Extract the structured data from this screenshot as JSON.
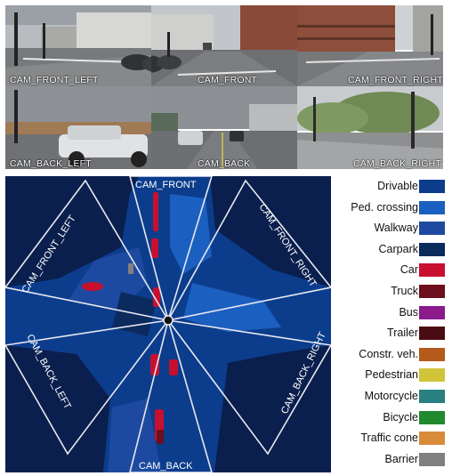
{
  "cameras": [
    {
      "label": "CAM_FRONT_LEFT"
    },
    {
      "label": "CAM_FRONT"
    },
    {
      "label": "CAM_FRONT_RIGHT"
    },
    {
      "label": "CAM_BACK_LEFT"
    },
    {
      "label": "CAM_BACK"
    },
    {
      "label": "CAM_BACK_RIGHT"
    }
  ],
  "bev": {
    "labels": {
      "front": "CAM_FRONT",
      "front_left": "CAM_FRONT_LEFT",
      "front_right": "CAM_FRONT_RIGHT",
      "back_left": "CAM_BACK_LEFT",
      "back_right": "CAM_BACK_RIGHT",
      "back": "CAM_BACK"
    }
  },
  "legend": [
    {
      "label": "Drivable",
      "color": "#0c3d8c"
    },
    {
      "label": "Ped. crossing",
      "color": "#1b5fc0"
    },
    {
      "label": "Walkway",
      "color": "#1d4aa0"
    },
    {
      "label": "Carpark",
      "color": "#0b2a5e"
    },
    {
      "label": "Car",
      "color": "#c8102e"
    },
    {
      "label": "Truck",
      "color": "#6d0f1c"
    },
    {
      "label": "Bus",
      "color": "#8b1a8b"
    },
    {
      "label": "Trailer",
      "color": "#4a0c12"
    },
    {
      "label": "Constr. veh.",
      "color": "#b45a1a"
    },
    {
      "label": "Pedestrian",
      "color": "#cfc43a"
    },
    {
      "label": "Motorcycle",
      "color": "#2a8080"
    },
    {
      "label": "Bicycle",
      "color": "#1f8a2e"
    },
    {
      "label": "Traffic cone",
      "color": "#d98b3a"
    },
    {
      "label": "Barrier",
      "color": "#808080"
    }
  ]
}
